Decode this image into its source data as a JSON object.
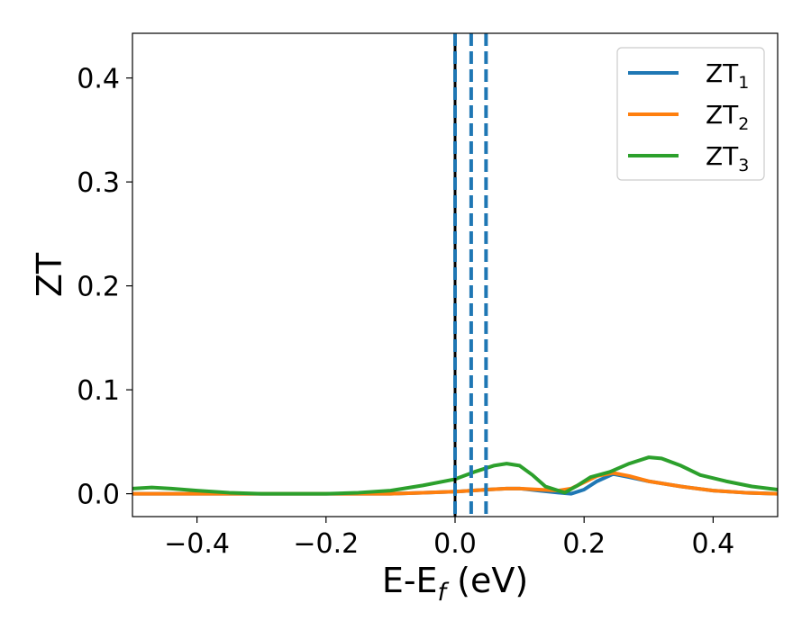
{
  "chart_data": {
    "type": "line",
    "title": "",
    "xlabel_main": "E-E",
    "xlabel_sub": "f",
    "xlabel_unit": " (eV)",
    "ylabel": "ZT",
    "xlim": [
      -0.5,
      0.5
    ],
    "ylim": [
      -0.022,
      0.443
    ],
    "grid": false,
    "legend_position": "top-right",
    "x_ticks": [
      -0.4,
      -0.2,
      0.0,
      0.2,
      0.4
    ],
    "x_tick_labels": [
      "−0.4",
      "−0.2",
      "0.0",
      "0.2",
      "0.4"
    ],
    "y_ticks": [
      0.0,
      0.1,
      0.2,
      0.3,
      0.4
    ],
    "y_tick_labels": [
      "0.0",
      "0.1",
      "0.2",
      "0.3",
      "0.4"
    ],
    "series": [
      {
        "name": "ZT",
        "name_sub": "1",
        "color": "#1f77b4",
        "x": [
          -0.5,
          -0.45,
          -0.4,
          -0.35,
          -0.3,
          -0.25,
          -0.2,
          -0.15,
          -0.1,
          -0.05,
          0.0,
          0.05,
          0.08,
          0.1,
          0.13,
          0.16,
          0.18,
          0.2,
          0.22,
          0.245,
          0.27,
          0.3,
          0.35,
          0.4,
          0.45,
          0.5
        ],
        "y": [
          0.0,
          0.0,
          0.0,
          0.0,
          0.0,
          0.0,
          0.0,
          0.0,
          0.0,
          0.001,
          0.002,
          0.004,
          0.005,
          0.005,
          0.003,
          0.001,
          0.0,
          0.004,
          0.012,
          0.019,
          0.016,
          0.012,
          0.007,
          0.003,
          0.001,
          0.0
        ]
      },
      {
        "name": "ZT",
        "name_sub": "2",
        "color": "#ff7f0e",
        "x": [
          -0.5,
          -0.45,
          -0.4,
          -0.35,
          -0.3,
          -0.25,
          -0.2,
          -0.15,
          -0.1,
          -0.05,
          0.0,
          0.05,
          0.08,
          0.1,
          0.13,
          0.16,
          0.18,
          0.2,
          0.22,
          0.245,
          0.27,
          0.3,
          0.35,
          0.4,
          0.45,
          0.5
        ],
        "y": [
          0.0,
          0.0,
          0.0,
          0.0,
          0.0,
          0.0,
          0.0,
          0.0,
          0.0,
          0.001,
          0.002,
          0.004,
          0.005,
          0.005,
          0.004,
          0.003,
          0.005,
          0.011,
          0.017,
          0.02,
          0.017,
          0.012,
          0.007,
          0.003,
          0.001,
          0.0
        ]
      },
      {
        "name": "ZT",
        "name_sub": "3",
        "color": "#2ca02c",
        "x": [
          -0.5,
          -0.47,
          -0.44,
          -0.4,
          -0.35,
          -0.3,
          -0.25,
          -0.2,
          -0.15,
          -0.1,
          -0.05,
          0.0,
          0.03,
          0.06,
          0.08,
          0.1,
          0.12,
          0.14,
          0.17,
          0.19,
          0.21,
          0.24,
          0.27,
          0.3,
          0.32,
          0.35,
          0.38,
          0.42,
          0.46,
          0.5
        ],
        "y": [
          0.005,
          0.006,
          0.005,
          0.003,
          0.001,
          0.0,
          0.0,
          0.0,
          0.001,
          0.003,
          0.008,
          0.014,
          0.021,
          0.027,
          0.029,
          0.027,
          0.018,
          0.007,
          0.001,
          0.008,
          0.016,
          0.021,
          0.029,
          0.035,
          0.034,
          0.027,
          0.018,
          0.012,
          0.007,
          0.004
        ]
      }
    ],
    "reference_lines": [
      {
        "kind": "solid",
        "x": 0.0,
        "color": "#000000"
      },
      {
        "kind": "dashed",
        "x": 0.0,
        "color": "#1f77b4"
      },
      {
        "kind": "dashed",
        "x": 0.025,
        "color": "#1f77b4"
      },
      {
        "kind": "dashed",
        "x": 0.048,
        "color": "#1f77b4"
      }
    ]
  }
}
